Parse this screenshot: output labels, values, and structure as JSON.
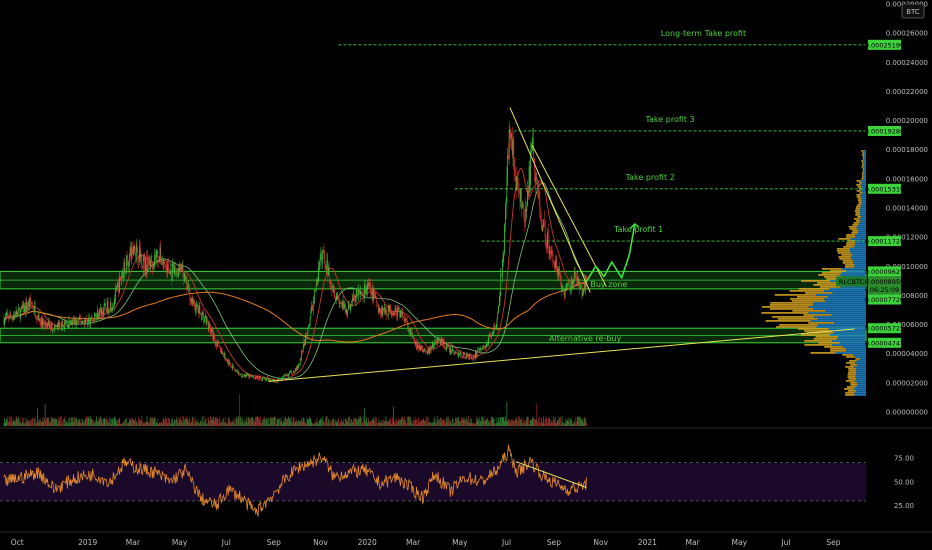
{
  "header": {
    "currency_badge": "BTC"
  },
  "chart_data": {
    "type": "candlestick",
    "symbol": "RLCBTC",
    "price_axis": {
      "ticks": [
        "0.00000000",
        "0.00002000",
        "0.00004000",
        "0.00006000",
        "0.00008000",
        "0.00010000",
        "0.00012000",
        "0.00014000",
        "0.00016000",
        "0.00018000",
        "0.00020000",
        "0.00022000",
        "0.00024000",
        "0.00026000",
        "0.00028000"
      ],
      "range": [
        0,
        0.00028
      ]
    },
    "rsi_axis": {
      "ticks": [
        "25.00",
        "50.00",
        "75.00"
      ],
      "range": [
        10,
        100
      ],
      "bands": [
        30,
        70
      ]
    },
    "x_axis": {
      "labels": [
        "Oct",
        "2019",
        "Mar",
        "May",
        "Jul",
        "Sep",
        "Nov",
        "2020",
        "Mar",
        "May",
        "Jul",
        "Sep",
        "Nov",
        "2021",
        "Mar",
        "May",
        "Jul",
        "Sep"
      ],
      "range": [
        "2018-09-15",
        "2021-10-20"
      ]
    },
    "levels": [
      {
        "name": "Long-term Take profit",
        "value": 0.00025199,
        "label": "0.00025199"
      },
      {
        "name": "Take profit 3",
        "value": 0.00019286,
        "label": "0.00019286"
      },
      {
        "name": "Take profit 2",
        "value": 0.00015319,
        "label": "0.00015319"
      },
      {
        "name": "Take profit 1",
        "value": 0.00011728,
        "label": "0.00011728"
      }
    ],
    "zones": [
      {
        "name": "Buy zone",
        "from": 8.45e-05,
        "to": 9.65e-05,
        "labels": [
          "0.00008453",
          "0.00009625"
        ]
      },
      {
        "name": "Alternative re-buy",
        "from": 4.75e-05,
        "to": 5.75e-05,
        "labels": [
          "0.00004747",
          "0.00005725"
        ]
      }
    ],
    "current_price": {
      "label": "RLCBTC",
      "value": 8.959e-05,
      "text": "0.00008959",
      "countdown": "06:25:09"
    },
    "extra_price_labels": [
      "0.00007720"
    ],
    "price_series": [
      [
        "2018-09-20",
        6.4e-05
      ],
      [
        "2018-10-10",
        6.8e-05
      ],
      [
        "2018-10-25",
        7.5e-05
      ],
      [
        "2018-11-10",
        6e-05
      ],
      [
        "2018-11-25",
        5.8e-05
      ],
      [
        "2018-12-10",
        6e-05
      ],
      [
        "2018-12-25",
        6.2e-05
      ],
      [
        "2019-01-10",
        6.3e-05
      ],
      [
        "2019-01-25",
        6.9e-05
      ],
      [
        "2019-02-10",
        7.5e-05
      ],
      [
        "2019-02-25",
        0.0001
      ],
      [
        "2019-03-10",
        0.000114
      ],
      [
        "2019-03-25",
        0.0001
      ],
      [
        "2019-04-10",
        0.000108
      ],
      [
        "2019-04-25",
        9.5e-05
      ],
      [
        "2019-05-10",
        9.7e-05
      ],
      [
        "2019-05-25",
        7.4e-05
      ],
      [
        "2019-06-10",
        6.4e-05
      ],
      [
        "2019-06-25",
        4.7e-05
      ],
      [
        "2019-07-10",
        3.4e-05
      ],
      [
        "2019-07-25",
        2.6e-05
      ],
      [
        "2019-08-10",
        2.4e-05
      ],
      [
        "2019-08-25",
        2.3e-05
      ],
      [
        "2019-09-10",
        2.1e-05
      ],
      [
        "2019-09-25",
        2.5e-05
      ],
      [
        "2019-10-10",
        3.1e-05
      ],
      [
        "2019-10-25",
        6.4e-05
      ],
      [
        "2019-11-10",
        0.00011
      ],
      [
        "2019-11-25",
        8.4e-05
      ],
      [
        "2019-12-10",
        6.9e-05
      ],
      [
        "2019-12-25",
        8e-05
      ],
      [
        "2020-01-10",
        8.5e-05
      ],
      [
        "2020-01-25",
        7e-05
      ],
      [
        "2020-02-10",
        7e-05
      ],
      [
        "2020-02-25",
        6.6e-05
      ],
      [
        "2020-03-10",
        4.6e-05
      ],
      [
        "2020-03-25",
        4.1e-05
      ],
      [
        "2020-04-10",
        5e-05
      ],
      [
        "2020-04-25",
        4.2e-05
      ],
      [
        "2020-05-10",
        3.9e-05
      ],
      [
        "2020-05-25",
        3.8e-05
      ],
      [
        "2020-06-10",
        4.5e-05
      ],
      [
        "2020-06-25",
        6.3e-05
      ],
      [
        "2020-07-05",
        0.000122
      ],
      [
        "2020-07-12",
        0.0002
      ],
      [
        "2020-07-20",
        0.000157
      ],
      [
        "2020-08-01",
        0.000132
      ],
      [
        "2020-08-10",
        0.000182
      ],
      [
        "2020-08-20",
        0.000138
      ],
      [
        "2020-09-01",
        0.000113
      ],
      [
        "2020-09-10",
        0.000102
      ],
      [
        "2020-09-20",
        8.2e-05
      ],
      [
        "2020-10-05",
        9.2e-05
      ],
      [
        "2020-10-15",
        8.4e-05
      ],
      [
        "2020-10-20",
        8.96e-05
      ]
    ],
    "projection": [
      [
        "2020-10-20",
        8.96e-05
      ],
      [
        "2020-11-01",
        0.0001
      ],
      [
        "2020-11-12",
        9.3e-05
      ],
      [
        "2020-11-22",
        0.000103
      ],
      [
        "2020-12-05",
        9.2e-05
      ],
      [
        "2020-12-15",
        0.000108
      ],
      [
        "2020-12-22",
        0.000129
      ]
    ],
    "trendlines": [
      {
        "name": "descending resistance",
        "points": [
          [
            "2020-07-12",
            0.000209
          ],
          [
            "2020-10-25",
            8.2e-05
          ]
        ]
      },
      {
        "name": "descending resistance 2",
        "points": [
          [
            "2020-08-10",
            0.000183
          ],
          [
            "2020-11-15",
            8.6e-05
          ]
        ]
      },
      {
        "name": "ascending support",
        "points": [
          [
            "2019-09-01",
            2.1e-05
          ],
          [
            "2021-10-05",
            5.7e-05
          ]
        ]
      }
    ],
    "rsi_series": [
      [
        "2018-09-20",
        50
      ],
      [
        "2018-10-15",
        55
      ],
      [
        "2018-11-05",
        60
      ],
      [
        "2018-11-25",
        42
      ],
      [
        "2018-12-20",
        53
      ],
      [
        "2019-01-15",
        58
      ],
      [
        "2019-02-05",
        50
      ],
      [
        "2019-02-25",
        70
      ],
      [
        "2019-03-15",
        64
      ],
      [
        "2019-04-05",
        60
      ],
      [
        "2019-04-25",
        50
      ],
      [
        "2019-05-15",
        62
      ],
      [
        "2019-06-05",
        32
      ],
      [
        "2019-06-25",
        25
      ],
      [
        "2019-07-10",
        42
      ],
      [
        "2019-07-25",
        35
      ],
      [
        "2019-08-15",
        18
      ],
      [
        "2019-09-05",
        35
      ],
      [
        "2019-09-25",
        55
      ],
      [
        "2019-10-10",
        65
      ],
      [
        "2019-10-25",
        70
      ],
      [
        "2019-11-10",
        76
      ],
      [
        "2019-11-25",
        55
      ],
      [
        "2019-12-15",
        60
      ],
      [
        "2020-01-05",
        62
      ],
      [
        "2020-01-25",
        48
      ],
      [
        "2020-02-15",
        55
      ],
      [
        "2020-03-05",
        43
      ],
      [
        "2020-03-20",
        34
      ],
      [
        "2020-04-05",
        58
      ],
      [
        "2020-04-25",
        40
      ],
      [
        "2020-05-15",
        55
      ],
      [
        "2020-06-05",
        50
      ],
      [
        "2020-06-25",
        62
      ],
      [
        "2020-07-10",
        82
      ],
      [
        "2020-07-22",
        60
      ],
      [
        "2020-08-08",
        72
      ],
      [
        "2020-08-25",
        55
      ],
      [
        "2020-09-10",
        48
      ],
      [
        "2020-09-25",
        42
      ],
      [
        "2020-10-10",
        44
      ],
      [
        "2020-10-20",
        48
      ]
    ],
    "rsi_trendline": [
      [
        "2020-07-20",
        71
      ],
      [
        "2020-10-20",
        44
      ]
    ]
  }
}
